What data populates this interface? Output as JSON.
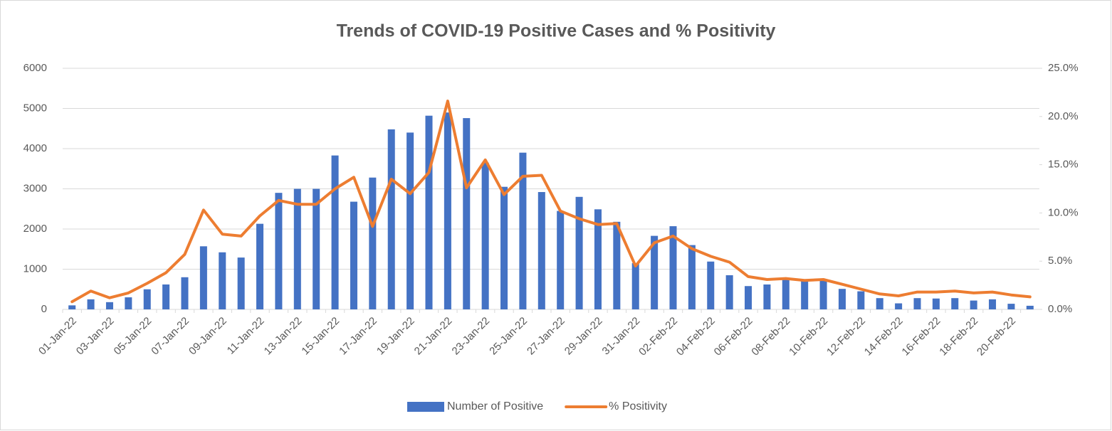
{
  "chart_data": {
    "type": "combo",
    "title": "Trends of COVID-19 Positive Cases and % Positivity",
    "categories": [
      "01-Jan-22",
      null,
      "03-Jan-22",
      null,
      "05-Jan-22",
      null,
      "07-Jan-22",
      null,
      "09-Jan-22",
      null,
      "11-Jan-22",
      null,
      "13-Jan-22",
      null,
      "15-Jan-22",
      null,
      "17-Jan-22",
      null,
      "19-Jan-22",
      null,
      "21-Jan-22",
      null,
      "23-Jan-22",
      null,
      "25-Jan-22",
      null,
      "27-Jan-22",
      null,
      "29-Jan-22",
      null,
      "31-Jan-22",
      null,
      "02-Feb-22",
      null,
      "04-Feb-22",
      null,
      "06-Feb-22",
      null,
      "08-Feb-22",
      null,
      "10-Feb-22",
      null,
      "12-Feb-22",
      null,
      "14-Feb-22",
      null,
      "16-Feb-22",
      null,
      "18-Feb-22",
      null,
      "20-Feb-22",
      null
    ],
    "series": [
      {
        "name": "Number of Positive",
        "type": "bar",
        "color": "#4472c4",
        "values": [
          100,
          250,
          180,
          300,
          500,
          620,
          800,
          1570,
          1420,
          1290,
          2130,
          2900,
          3000,
          3000,
          3830,
          2680,
          3280,
          4480,
          4400,
          4820,
          4900,
          4760,
          3650,
          3050,
          3900,
          2920,
          2450,
          2800,
          2490,
          2180,
          1150,
          1830,
          2070,
          1600,
          1190,
          850,
          580,
          620,
          750,
          700,
          730,
          510,
          450,
          280,
          150,
          280,
          270,
          280,
          220,
          250,
          140,
          90
        ]
      },
      {
        "name": "% Positivity",
        "type": "line",
        "axis": "y2",
        "color": "#ed7d31",
        "values": [
          0.8,
          1.9,
          1.2,
          1.7,
          2.7,
          3.8,
          5.7,
          10.3,
          7.8,
          7.6,
          9.7,
          11.3,
          10.9,
          10.9,
          12.5,
          13.7,
          8.6,
          13.5,
          12.0,
          14.2,
          21.6,
          12.6,
          15.5,
          11.9,
          13.8,
          13.9,
          10.2,
          9.4,
          8.8,
          8.9,
          4.5,
          6.9,
          7.6,
          6.3,
          5.5,
          4.9,
          3.4,
          3.1,
          3.2,
          3.0,
          3.1,
          2.6,
          2.1,
          1.6,
          1.4,
          1.8,
          1.8,
          1.9,
          1.7,
          1.8,
          1.5,
          1.3
        ]
      }
    ],
    "ylim": [
      0,
      6000
    ],
    "yticks": [
      0,
      1000,
      2000,
      3000,
      4000,
      5000,
      6000
    ],
    "y2lim": [
      0,
      25
    ],
    "y2ticks": [
      {
        "value": 0,
        "label": "0.0%"
      },
      {
        "value": 5,
        "label": "5.0%"
      },
      {
        "value": 10,
        "label": "10.0%"
      },
      {
        "value": 15,
        "label": "15.0%"
      },
      {
        "value": 20,
        "label": "20.0%"
      },
      {
        "value": 25,
        "label": "25.0%"
      }
    ],
    "grid": true,
    "legend": "bottom"
  }
}
